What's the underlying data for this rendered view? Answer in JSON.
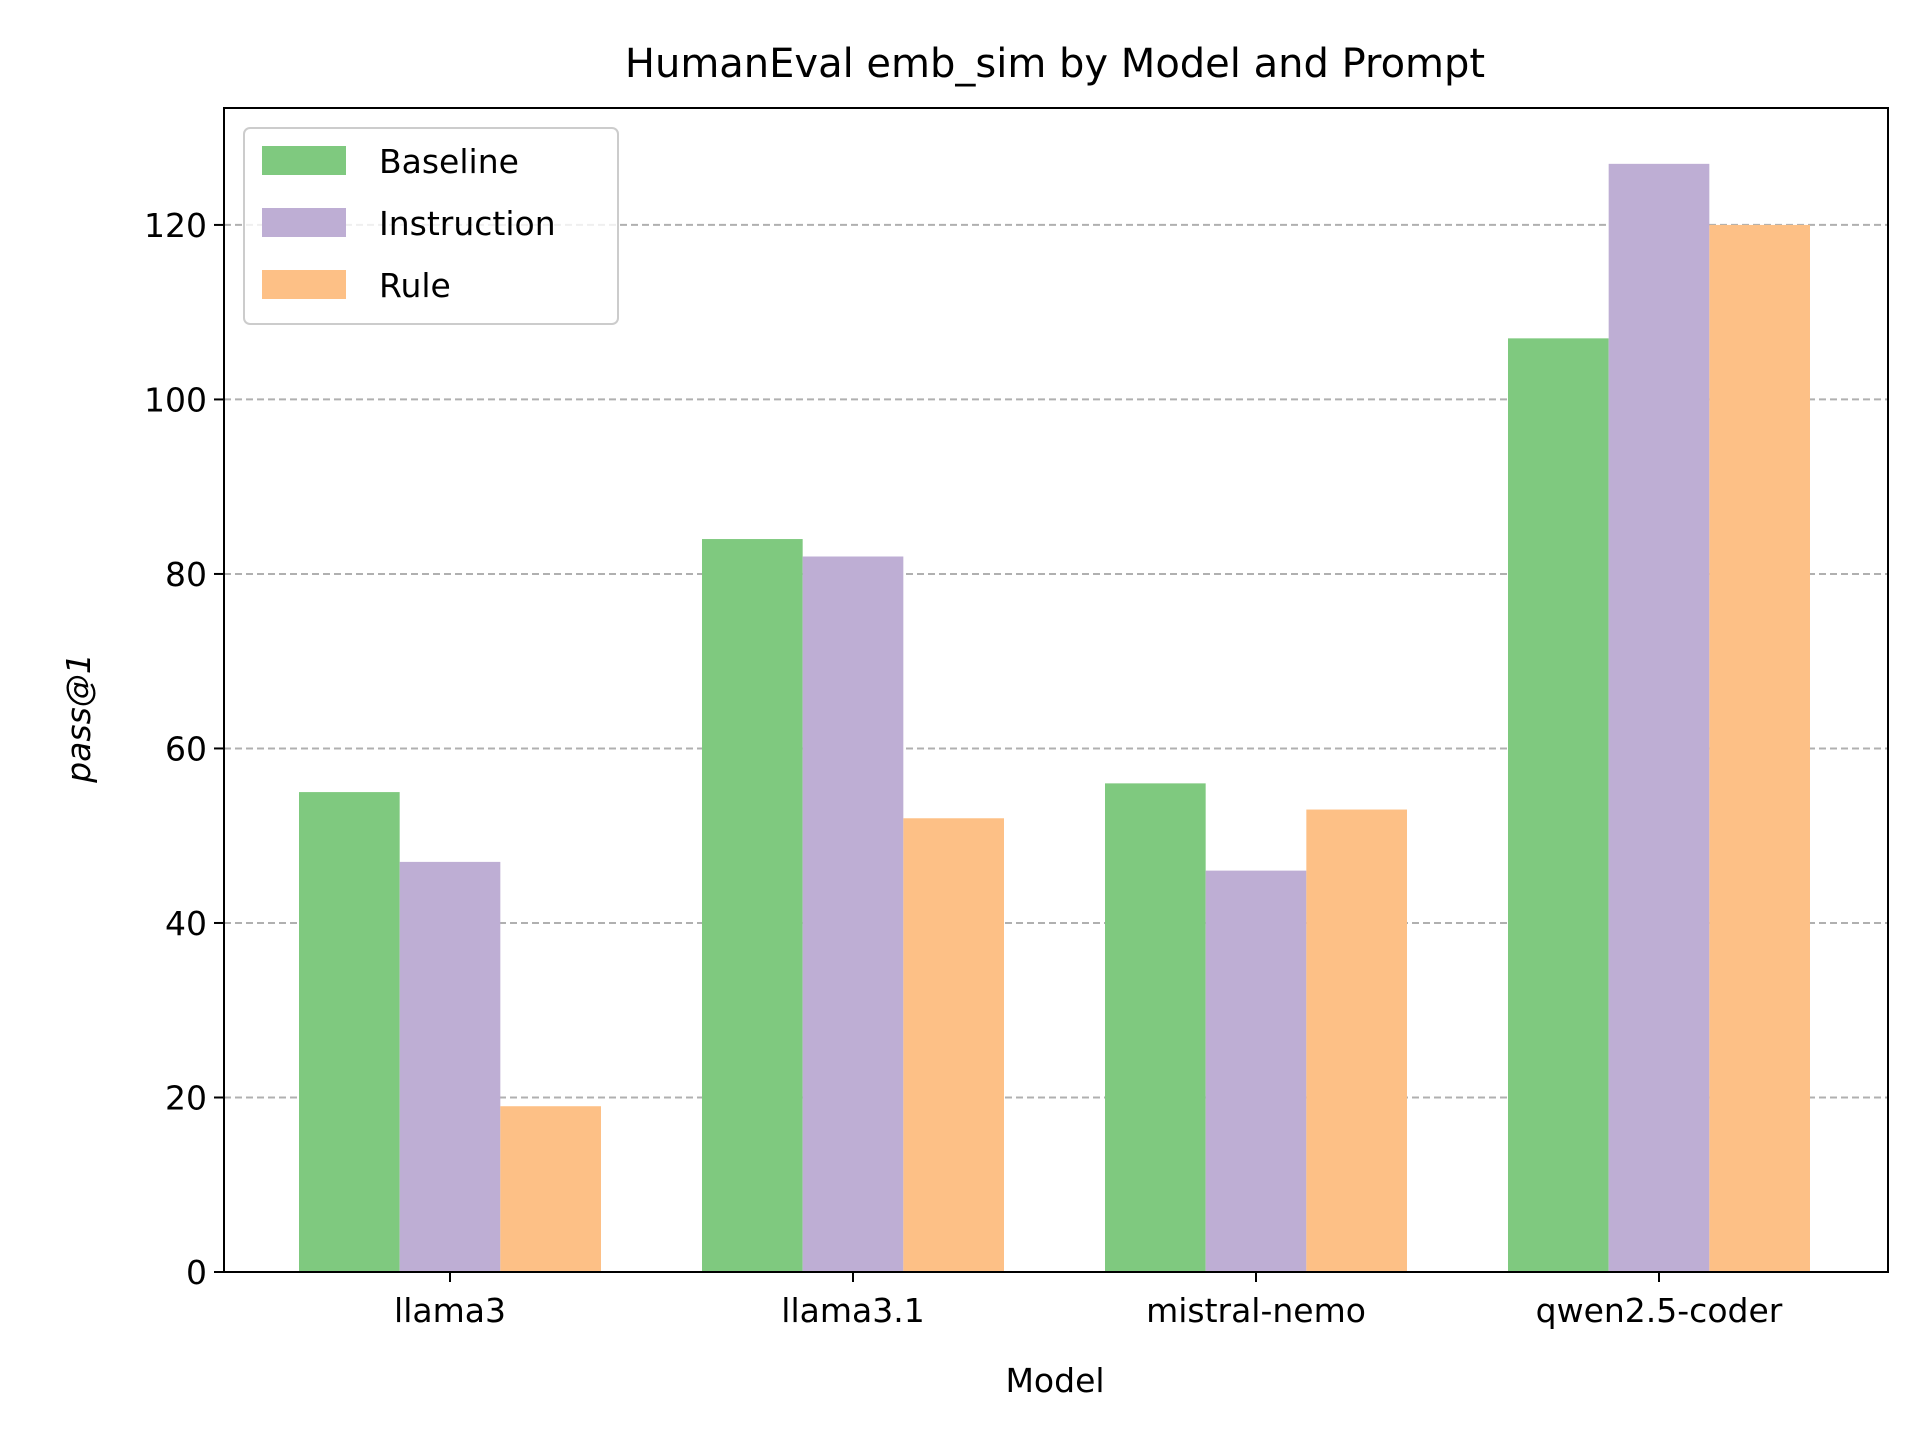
{
  "chart_data": {
    "type": "bar",
    "title": "HumanEval emb_sim by Model and Prompt",
    "xlabel": "Model",
    "ylabel": "pass@1",
    "categories": [
      "llama3",
      "llama3.1",
      "mistral-nemo",
      "qwen2.5-coder"
    ],
    "series": [
      {
        "name": "Baseline",
        "color": "#7fc97f",
        "values": [
          55,
          84,
          56,
          107
        ]
      },
      {
        "name": "Instruction",
        "color": "#beaed4",
        "values": [
          47,
          82,
          46,
          127
        ]
      },
      {
        "name": "Rule",
        "color": "#fdc086",
        "values": [
          19,
          52,
          53,
          120
        ]
      }
    ],
    "ylim": [
      0,
      133.4
    ],
    "yticks": [
      0,
      20,
      40,
      60,
      80,
      100,
      120
    ],
    "grid": "y-dashed",
    "legend_position": "top-left"
  }
}
